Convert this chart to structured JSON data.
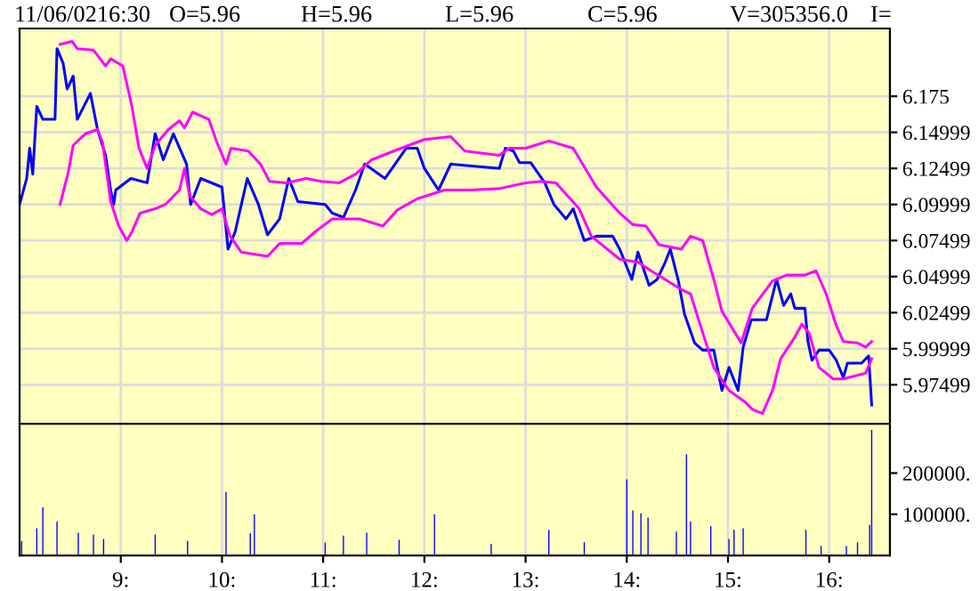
{
  "chart_data": [
    {
      "type": "line",
      "annotations": [
        "11/06/0216:30",
        "O=5.96",
        "H=5.96",
        "L=5.96",
        "C=5.96",
        "V=305356.0",
        "I="
      ],
      "xlim": [
        8.0,
        16.6
      ],
      "xticks": [
        {
          "value": 9,
          "label": null
        },
        {
          "value": 10,
          "label": null
        },
        {
          "value": 11,
          "label": null
        },
        {
          "value": 12,
          "label": null
        },
        {
          "value": 13,
          "label": null
        },
        {
          "value": 14,
          "label": null
        },
        {
          "value": 15,
          "label": null
        },
        {
          "value": 16,
          "label": null
        }
      ],
      "ylim": [
        5.948,
        6.222
      ],
      "yticks": [
        6.175,
        6.14999,
        6.12499,
        6.09999,
        6.07499,
        6.04999,
        6.02499,
        5.99999,
        5.97499
      ],
      "grid": true,
      "tick_labels": "y",
      "series": [
        {
          "color": "#0000ff",
          "x": [
            8.0,
            8.07,
            8.1,
            8.13,
            8.17,
            8.23,
            8.35,
            8.37,
            8.43,
            8.47,
            8.53,
            8.57,
            8.7,
            8.77,
            8.85,
            8.9,
            8.93,
            8.95,
            9.1,
            9.26,
            9.34,
            9.42,
            9.52,
            9.65,
            9.69,
            9.79,
            10.0,
            10.06,
            10.13,
            10.25,
            10.36,
            10.45,
            10.57,
            10.66,
            10.75,
            11.02,
            11.09,
            11.2,
            11.32,
            11.41,
            11.61,
            11.82,
            11.93,
            12.0,
            12.14,
            12.26,
            12.74,
            12.8,
            12.88,
            12.94,
            13.05,
            13.19,
            13.28,
            13.4,
            13.47,
            13.58,
            13.7,
            13.86,
            13.93,
            14.05,
            14.11,
            14.22,
            14.3,
            14.38,
            14.43,
            14.51,
            14.57,
            14.67,
            14.75,
            14.86,
            14.94,
            15.01,
            15.1,
            15.15,
            15.23,
            15.38,
            15.48,
            15.55,
            15.62,
            15.66,
            15.76,
            15.79,
            15.83,
            15.9,
            16.0,
            16.07,
            16.14,
            16.18,
            16.32,
            16.39,
            16.42
          ],
          "values": [
            6.1,
            6.118,
            6.139,
            6.121,
            6.168,
            6.159,
            6.159,
            6.208,
            6.198,
            6.18,
            6.189,
            6.159,
            6.177,
            6.152,
            6.134,
            6.11,
            6.1,
            6.11,
            6.118,
            6.115,
            6.149,
            6.131,
            6.149,
            6.128,
            6.1,
            6.118,
            6.112,
            6.069,
            6.081,
            6.118,
            6.1,
            6.079,
            6.09,
            6.118,
            6.102,
            6.1,
            6.094,
            6.091,
            6.11,
            6.128,
            6.118,
            6.139,
            6.139,
            6.125,
            6.11,
            6.128,
            6.125,
            6.139,
            6.137,
            6.129,
            6.129,
            6.115,
            6.1,
            6.09,
            6.097,
            6.075,
            6.078,
            6.078,
            6.069,
            6.048,
            6.067,
            6.044,
            6.048,
            6.06,
            6.069,
            6.047,
            6.024,
            6.004,
            5.999,
            5.999,
            5.971,
            5.987,
            5.971,
            6.001,
            6.02,
            6.02,
            6.048,
            6.03,
            6.038,
            6.028,
            6.028,
            6.005,
            5.992,
            5.999,
            5.999,
            5.992,
            5.98,
            5.99,
            5.99,
            5.995,
            5.961
          ]
        },
        {
          "color": "#ff00ff",
          "x": [
            8.4,
            8.52,
            8.57,
            8.73,
            8.85,
            8.9,
            9.02,
            9.11,
            9.18,
            9.26,
            9.34,
            9.47,
            9.58,
            9.63,
            9.71,
            9.87,
            9.95,
            10.04,
            10.09,
            10.26,
            10.38,
            10.47,
            10.64,
            10.83,
            10.98,
            11.16,
            11.32,
            11.48,
            11.77,
            12.0,
            12.26,
            12.4,
            12.74,
            12.84,
            13.0,
            13.23,
            13.47,
            13.7,
            13.93,
            14.06,
            14.19,
            14.32,
            14.54,
            14.63,
            14.75,
            14.86,
            14.94,
            15.13,
            15.24,
            15.44,
            15.58,
            15.76,
            15.87,
            15.97,
            16.07,
            16.14,
            16.28,
            16.36,
            16.42
          ],
          "values": [
            6.211,
            6.213,
            6.208,
            6.207,
            6.196,
            6.201,
            6.196,
            6.168,
            6.139,
            6.125,
            6.141,
            6.152,
            6.158,
            6.153,
            6.164,
            6.159,
            6.143,
            6.128,
            6.139,
            6.137,
            6.128,
            6.116,
            6.115,
            6.118,
            6.116,
            6.115,
            6.121,
            6.131,
            6.139,
            6.145,
            6.147,
            6.137,
            6.134,
            6.139,
            6.139,
            6.144,
            6.139,
            6.112,
            6.094,
            6.086,
            6.085,
            6.072,
            6.069,
            6.078,
            6.075,
            6.048,
            6.026,
            6.004,
            6.028,
            6.047,
            6.051,
            6.051,
            6.054,
            6.038,
            6.016,
            6.005,
            6.004,
            6.001,
            6.005
          ]
        },
        {
          "color": "#ff00ff",
          "x": [
            8.4,
            8.48,
            8.53,
            8.65,
            8.77,
            8.82,
            8.9,
            8.98,
            9.06,
            9.11,
            9.19,
            9.34,
            9.44,
            9.58,
            9.63,
            9.68,
            9.79,
            9.9,
            10.0,
            10.08,
            10.19,
            10.45,
            10.57,
            10.79,
            10.92,
            11.09,
            11.36,
            11.59,
            11.73,
            11.93,
            12.2,
            12.46,
            12.74,
            13.0,
            13.16,
            13.3,
            13.53,
            13.65,
            13.93,
            14.11,
            14.24,
            14.54,
            14.63,
            14.71,
            14.86,
            15.01,
            15.17,
            15.24,
            15.34,
            15.44,
            15.52,
            15.66,
            15.73,
            15.8,
            15.9,
            16.04,
            16.14,
            16.36,
            16.42
          ],
          "values": [
            6.1,
            6.122,
            6.141,
            6.149,
            6.152,
            6.143,
            6.102,
            6.085,
            6.075,
            6.081,
            6.094,
            6.097,
            6.1,
            6.11,
            6.125,
            6.106,
            6.097,
            6.093,
            6.097,
            6.078,
            6.067,
            6.064,
            6.073,
            6.073,
            6.081,
            6.09,
            6.09,
            6.085,
            6.096,
            6.104,
            6.11,
            6.11,
            6.111,
            6.115,
            6.116,
            6.115,
            6.097,
            6.078,
            6.062,
            6.06,
            6.054,
            6.041,
            6.038,
            6.02,
            5.987,
            5.971,
            5.963,
            5.958,
            5.955,
            5.971,
            5.993,
            6.008,
            6.017,
            6.011,
            5.987,
            5.979,
            5.979,
            5.983,
            5.993
          ]
        }
      ]
    },
    {
      "type": "bar",
      "color": "#0000ff",
      "grid": "x",
      "x": [
        8.02,
        8.17,
        8.23,
        8.37,
        8.58,
        8.73,
        8.83,
        9.34,
        9.66,
        10.04,
        10.28,
        10.32,
        11.02,
        11.2,
        11.43,
        11.75,
        12.1,
        12.66,
        13.23,
        13.58,
        14.0,
        14.06,
        14.14,
        14.21,
        14.49,
        14.59,
        14.63,
        14.83,
        15.01,
        15.06,
        15.15,
        15.77,
        15.92,
        16.17,
        16.28,
        16.4,
        16.42
      ],
      "values": [
        35000,
        66000,
        117000,
        82000,
        55000,
        51000,
        40000,
        51000,
        35000,
        154000,
        54000,
        100000,
        31000,
        48000,
        55000,
        38000,
        100000,
        28000,
        62000,
        32000,
        185000,
        109000,
        102000,
        92000,
        58000,
        246000,
        82000,
        71000,
        40000,
        62000,
        66000,
        62000,
        23000,
        23000,
        32000,
        74000,
        305000
      ],
      "xlim": [
        8.0,
        16.6
      ],
      "xticks": [
        {
          "value": 9,
          "label": "9:"
        },
        {
          "value": 10,
          "label": "10:"
        },
        {
          "value": 11,
          "label": "11:"
        },
        {
          "value": 12,
          "label": "12:"
        },
        {
          "value": 13,
          "label": "13:"
        },
        {
          "value": 14,
          "label": "14:"
        },
        {
          "value": 15,
          "label": "15:"
        },
        {
          "value": 16,
          "label": "16:"
        }
      ],
      "ylim": [
        0,
        320000
      ],
      "yticks": [
        {
          "value": 100000,
          "label": "100000."
        },
        {
          "value": 200000,
          "label": "200000."
        }
      ]
    }
  ]
}
